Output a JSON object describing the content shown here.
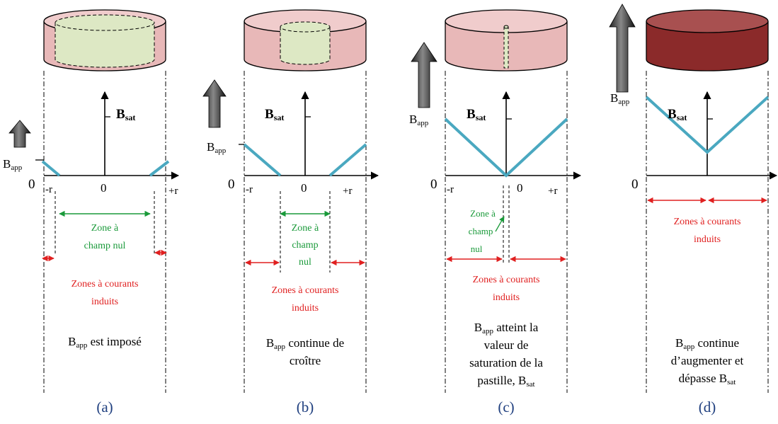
{
  "colors": {
    "disc_a": "#e8b8b8",
    "disc_b": "#e8b8b8",
    "disc_c": "#e8b8b8",
    "disc_d": "#8b2a2a",
    "disc_d_top": "#a85050",
    "core": "#dde8c4",
    "profile": "#4aa8c0",
    "green_text": "#1a9a3a",
    "red_text": "#e02020",
    "caption_blue": "#1f3f7f"
  },
  "panels": [
    {
      "id": "a",
      "caption": "(a)",
      "b_sat": "B",
      "b_sat_sub": "sat",
      "b_app": "B",
      "b_app_sub": "app",
      "zero_left": "0",
      "zero_center": "0",
      "minus_r": "-r",
      "plus_r": "+r",
      "zone_null": [
        "Zone à",
        "champ nul"
      ],
      "zone_currents": [
        "Zones à courants",
        "induits"
      ],
      "description_pre": "B",
      "description_sub": "app",
      "description_lines": [
        " est imposé"
      ]
    },
    {
      "id": "b",
      "caption": "(b)",
      "b_sat": "B",
      "b_sat_sub": "sat",
      "b_app": "B",
      "b_app_sub": "app",
      "zero_left": "0",
      "zero_center": "0",
      "minus_r": "-r",
      "plus_r": "+r",
      "zone_null": [
        "Zone à",
        "champ",
        "nul"
      ],
      "zone_currents": [
        "Zones à courants",
        "induits"
      ],
      "description_pre": "B",
      "description_sub": "app",
      "description_lines": [
        " continue de",
        "croître"
      ]
    },
    {
      "id": "c",
      "caption": "(c)",
      "b_sat": "B",
      "b_sat_sub": "sat",
      "b_app": "B",
      "b_app_sub": "app",
      "zero_left": "0",
      "zero_center": "0",
      "minus_r": "-r",
      "plus_r": "+r",
      "zone_null": [
        "Zone à",
        "champ",
        "nul"
      ],
      "zone_currents": [
        "Zones à courants",
        "induits"
      ],
      "description_pre": "B",
      "description_sub": "app",
      "description_lines": [
        " atteint la",
        "valeur de",
        "saturation de la",
        "pastille, B"
      ],
      "description_tail_sub": "sat"
    },
    {
      "id": "d",
      "caption": "(d)",
      "b_sat": "B",
      "b_sat_sub": "sat",
      "b_app": "B",
      "b_app_sub": "app",
      "zero_left": "0",
      "zone_currents": [
        "Zones à courants",
        "induits"
      ],
      "description_pre": "B",
      "description_sub": "app",
      "description_lines": [
        " continue",
        "d’augmenter et",
        "dépasse B"
      ],
      "description_tail_sub": "sat"
    }
  ]
}
